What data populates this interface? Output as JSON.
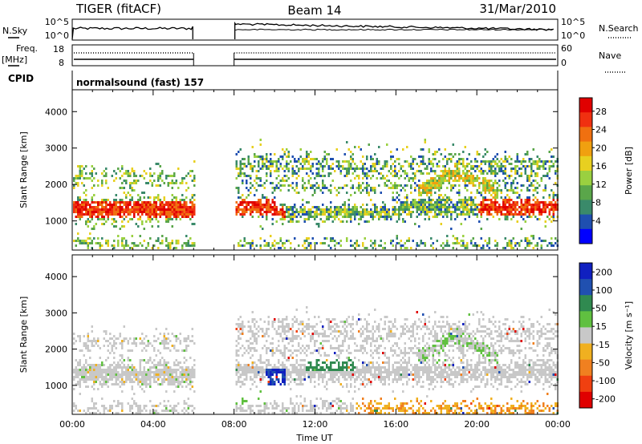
{
  "header": {
    "station": "TIGER (fitACF)",
    "beam": "Beam 14",
    "date": "31/Mar/2010"
  },
  "summary_panels": {
    "nsky_label": "N.Sky",
    "nsky_ticks": [
      "10^5",
      "10^0"
    ],
    "nsearch_label": "N.Search",
    "nsearch_ticks": [
      "10^5",
      "10^0"
    ],
    "freq_label_1": "Freq.",
    "freq_label_2": "[MHz]",
    "freq_ticks": [
      "18",
      "8"
    ],
    "nave_label": "Nave",
    "nave_ticks": [
      "60",
      "0"
    ],
    "cpid_label": "CPID",
    "cpid_text": "normalsound (fast) 157"
  },
  "chart_data": [
    {
      "type": "heatmap",
      "name": "power",
      "ylabel": "Slant Range [km]",
      "yticks": [
        "1000",
        "2000",
        "3000",
        "4000"
      ],
      "ylim": [
        200,
        4600
      ],
      "colorbar_label": "Power [dB]",
      "colorbar_ticks": [
        "4",
        "8",
        "12",
        "16",
        "20",
        "24",
        "28"
      ],
      "colorbar_colors": [
        "#0000ff",
        "#1f4fb0",
        "#3a8a6a",
        "#5aa64a",
        "#9ad040",
        "#e8d020",
        "#f0a010",
        "#f07010",
        "#f03010",
        "#e00000"
      ],
      "data_gap_hours": [
        6.0,
        8.0
      ]
    },
    {
      "type": "heatmap",
      "name": "velocity",
      "ylabel": "Slant Range [km]",
      "yticks": [
        "1000",
        "2000",
        "3000",
        "4000"
      ],
      "ylim": [
        200,
        4600
      ],
      "colorbar_label": "Velocity [m s⁻¹]",
      "colorbar_ticks": [
        "200",
        "100",
        "50",
        "15",
        "-15",
        "-50",
        "-100",
        "-200"
      ],
      "colorbar_colors": [
        "#1020c0",
        "#2050b0",
        "#308a50",
        "#60c040",
        "#c8c8c8",
        "#f0b020",
        "#f08020",
        "#f04010",
        "#e00000"
      ],
      "xlabel": "Time UT",
      "xticks": [
        "00:00",
        "04:00",
        "08:00",
        "12:00",
        "16:00",
        "20:00",
        "00:00"
      ],
      "xlim": [
        0,
        24
      ],
      "data_gap_hours": [
        6.0,
        8.0
      ]
    }
  ]
}
